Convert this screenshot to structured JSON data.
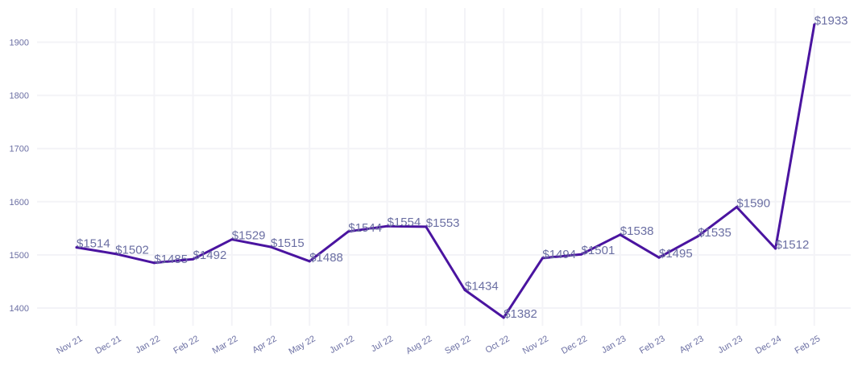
{
  "chart_data": {
    "type": "line",
    "title": "",
    "xlabel": "",
    "ylabel": "",
    "categories": [
      "Nov 21",
      "Dec 21",
      "Jan 22",
      "Feb 22",
      "Mar 22",
      "Apr 22",
      "May 22",
      "Jun 22",
      "Jul 22",
      "Aug 22",
      "Sep 22",
      "Oct 22",
      "Nov 22",
      "Dec 22",
      "Jan 23",
      "Feb 23",
      "Apr 23",
      "Jun 23",
      "Dec 24",
      "Feb 25"
    ],
    "values": [
      1514,
      1502,
      1485,
      1492,
      1529,
      1515,
      1488,
      1544,
      1554,
      1553,
      1434,
      1382,
      1494,
      1501,
      1538,
      1495,
      1535,
      1590,
      1512,
      1933
    ],
    "labels": [
      "$1514",
      "$1502",
      "$1485",
      "$1492",
      "$1529",
      "$1515",
      "$1488",
      "$1544",
      "$1554",
      "$1553",
      "$1434",
      "$1382",
      "$1494",
      "$1501",
      "$1538",
      "$1495",
      "$1535",
      "$1590",
      "$1512",
      "$1933"
    ],
    "yticks": [
      1400,
      1500,
      1600,
      1700,
      1800,
      1900
    ],
    "ylim": [
      1348,
      1960
    ],
    "grid": true,
    "line_color": "#4a14a0"
  }
}
